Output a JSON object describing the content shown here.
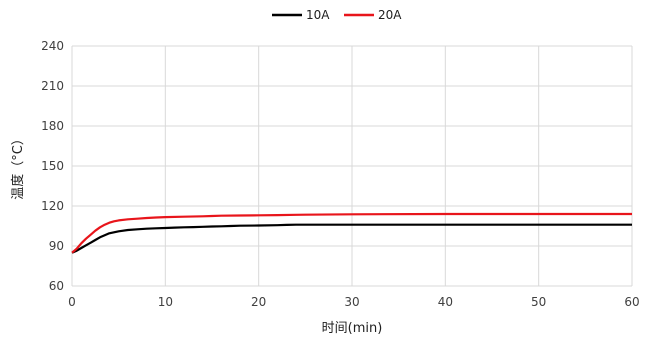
{
  "chart_data": {
    "type": "line",
    "title": "",
    "xlabel": "时间(min)",
    "ylabel": "温度（°C）",
    "xlim": [
      0,
      60
    ],
    "ylim": [
      60,
      240
    ],
    "x_ticks": [
      0,
      10,
      20,
      30,
      40,
      50,
      60
    ],
    "y_ticks": [
      60,
      90,
      120,
      150,
      180,
      210,
      240
    ],
    "grid": true,
    "legend_position": "top-center",
    "series": [
      {
        "name": "10A",
        "color": "#000000",
        "x": [
          0,
          0.5,
          1,
          1.5,
          2,
          2.5,
          3,
          3.5,
          4,
          5,
          6,
          7,
          8,
          9,
          10,
          11,
          12,
          13,
          14,
          15,
          16,
          17,
          18,
          20,
          22,
          23,
          24,
          25,
          30,
          40,
          50,
          60
        ],
        "y": [
          85,
          86.5,
          88.5,
          90.5,
          92.5,
          94.5,
          96.5,
          98,
          99.5,
          101,
          102,
          102.5,
          103,
          103.3,
          103.5,
          103.8,
          104,
          104.2,
          104.4,
          104.6,
          104.8,
          105,
          105.2,
          105.4,
          105.6,
          105.8,
          106,
          106,
          106,
          106,
          106,
          106
        ]
      },
      {
        "name": "20A",
        "color": "#e8151b",
        "x": [
          0,
          0.5,
          1,
          1.5,
          2,
          2.5,
          3,
          3.5,
          4,
          4.5,
          5,
          6,
          7,
          8,
          9,
          10,
          12,
          14,
          15,
          16,
          18,
          20,
          22,
          24,
          25,
          30,
          40,
          50,
          60
        ],
        "y": [
          85,
          88,
          92,
          95.5,
          98.5,
          101.5,
          104,
          106,
          107.5,
          108.5,
          109.2,
          110,
          110.5,
          111,
          111.4,
          111.7,
          112,
          112.3,
          112.5,
          112.7,
          112.9,
          113,
          113.2,
          113.4,
          113.5,
          113.8,
          114,
          114,
          114
        ]
      }
    ]
  }
}
